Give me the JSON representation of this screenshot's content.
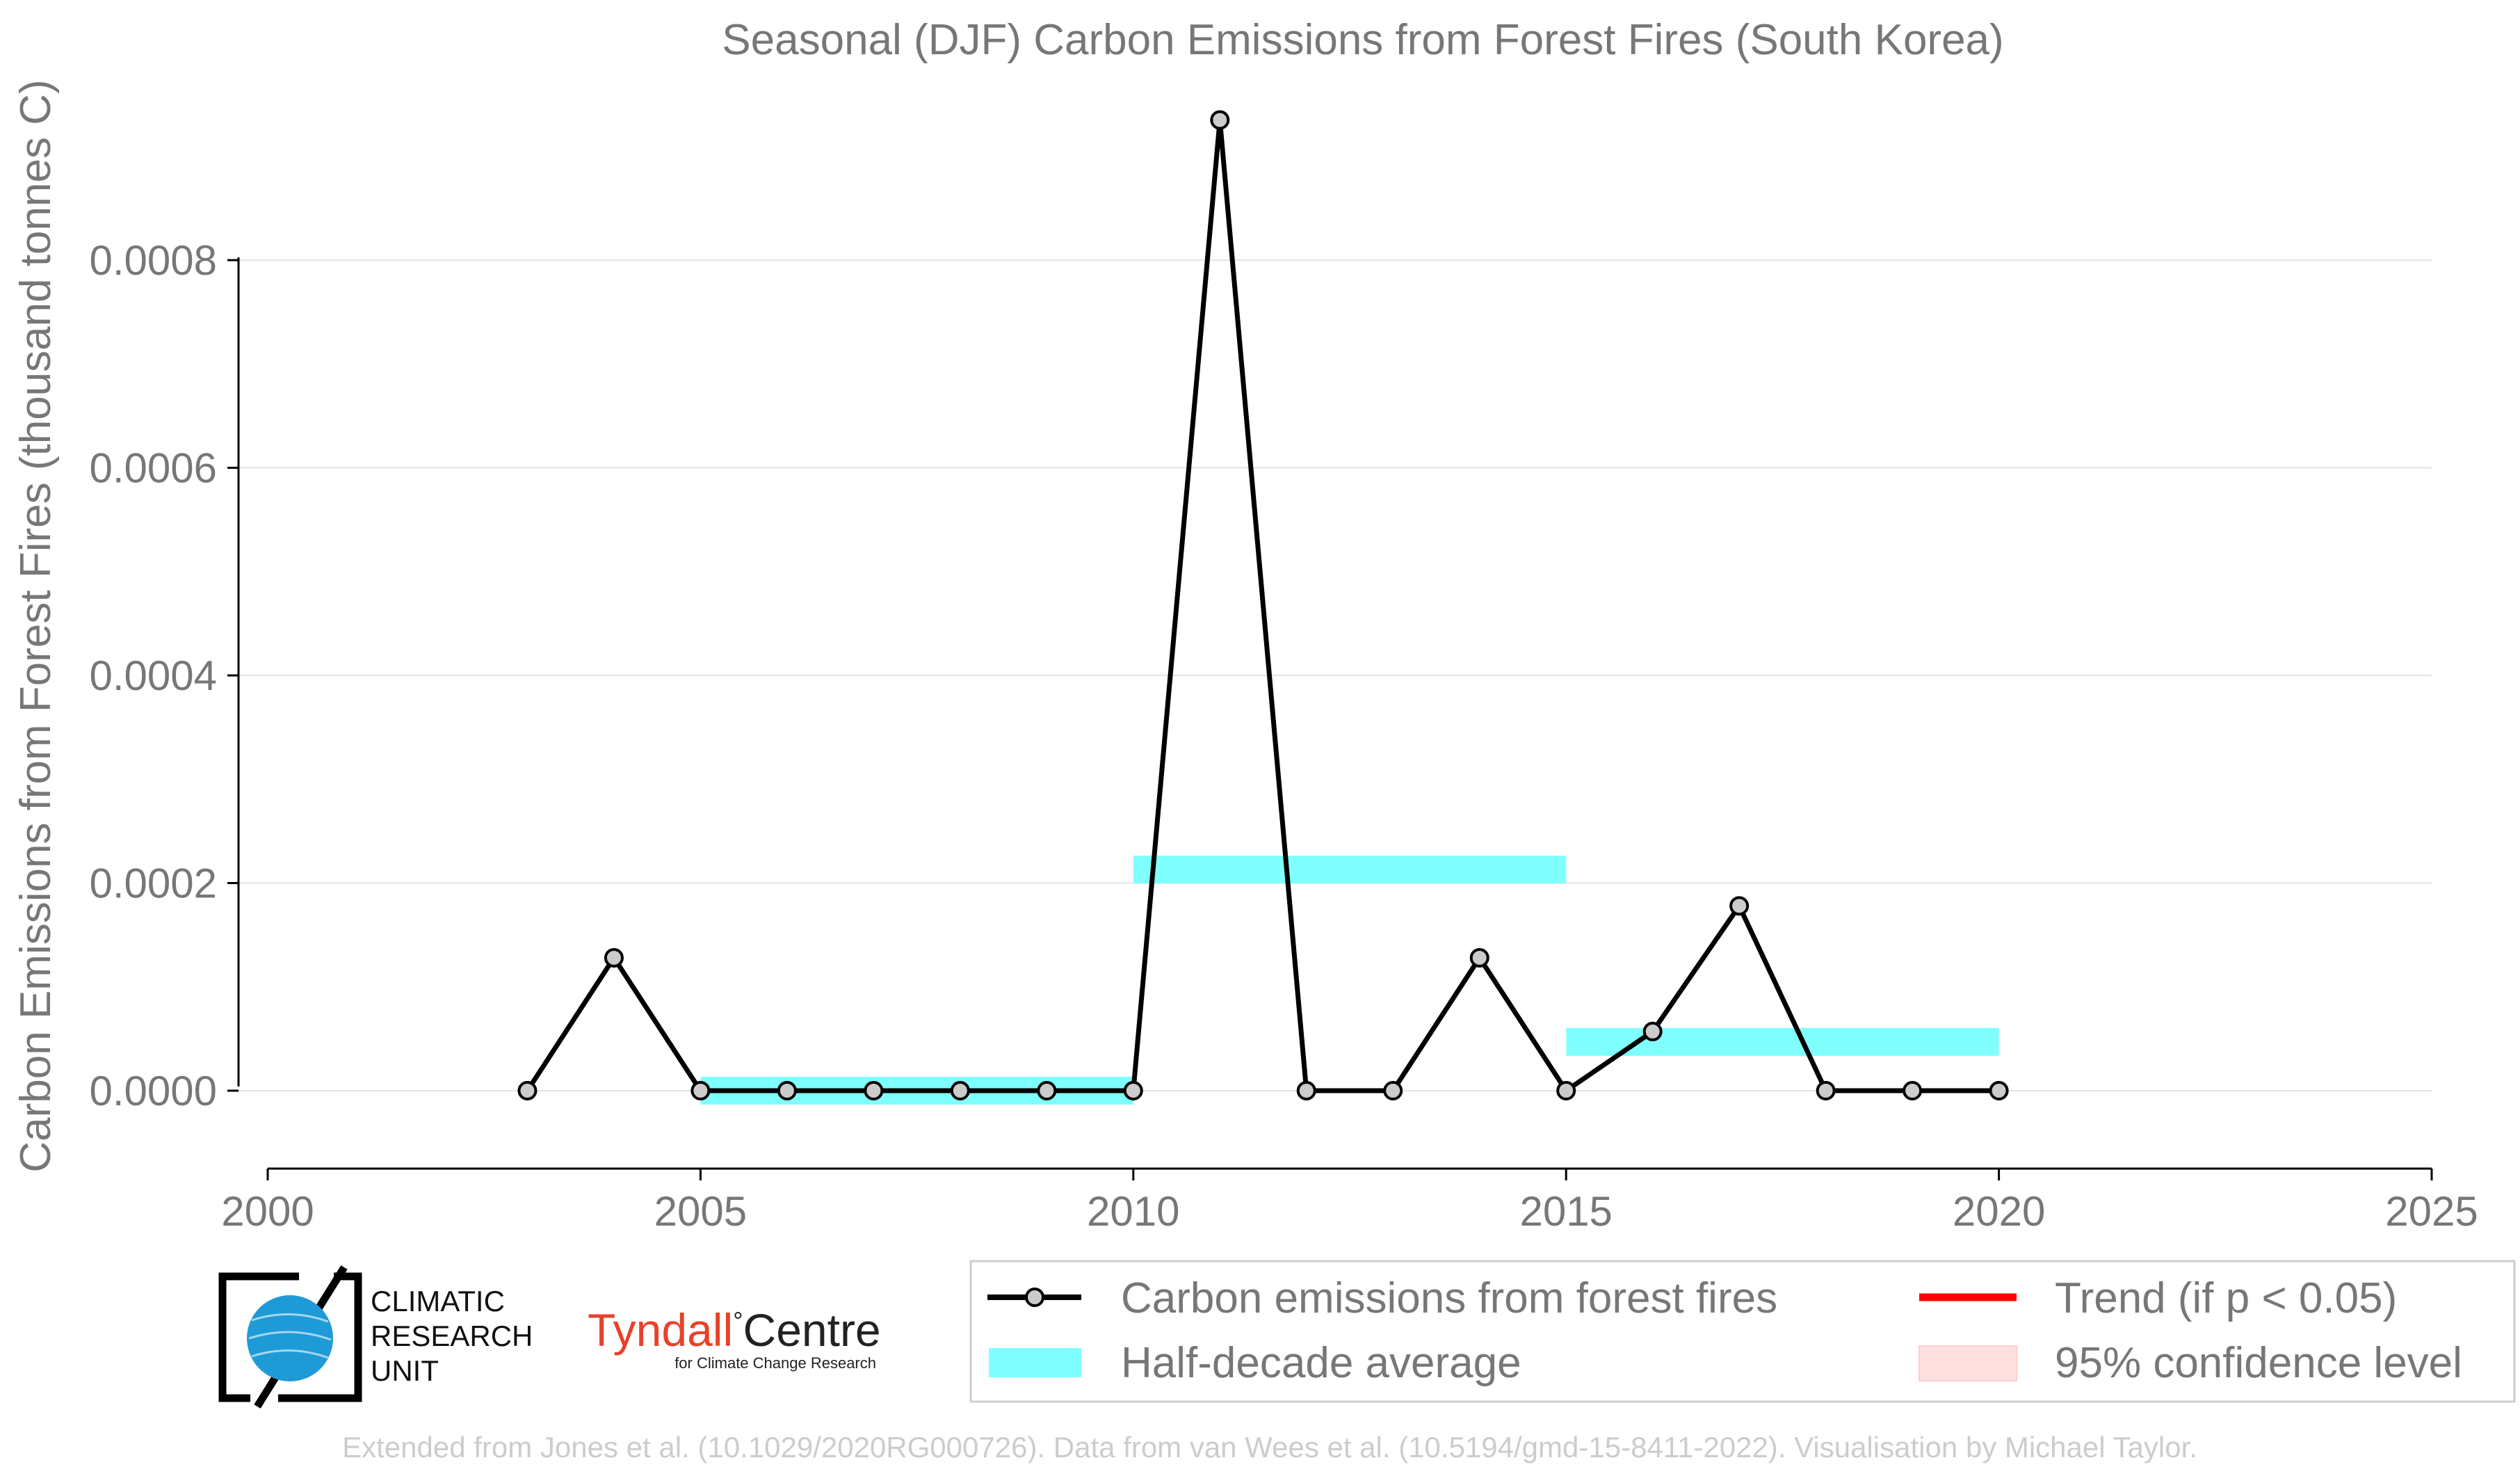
{
  "chart_data": {
    "type": "line",
    "title": "Seasonal (DJF) Carbon Emissions from Forest Fires (South Korea)",
    "xlabel": "",
    "ylabel": "Carbon Emissions from Forest Fires (thousand tonnes C)",
    "xlim": [
      2000,
      2025
    ],
    "ylim": [
      -7.5e-05,
      0.00095
    ],
    "x_ticks": [
      "2000",
      "2005",
      "2010",
      "2015",
      "2020",
      "2025"
    ],
    "y_ticks": [
      "0.0000",
      "0.0002",
      "0.0004",
      "0.0006",
      "0.0008"
    ],
    "grid": "horizontal",
    "legend_position": "bottom-right",
    "series": [
      {
        "name": "Carbon emissions from forest fires",
        "color": "#000000",
        "marker_color": "#cccccc",
        "x": [
          2003,
          2004,
          2005,
          2006,
          2007,
          2008,
          2009,
          2010,
          2011,
          2012,
          2013,
          2014,
          2015,
          2016,
          2017,
          2018,
          2019,
          2020
        ],
        "y": [
          0,
          0.000128,
          0,
          0,
          0,
          0,
          0,
          0,
          0.000935,
          0,
          0,
          0.000128,
          0,
          5.7e-05,
          0.000178,
          0,
          0,
          0
        ]
      }
    ],
    "half_decade_average": {
      "name": "Half-decade average",
      "color": "#80ffff",
      "segments": [
        {
          "x_start": 2005,
          "x_end": 2010,
          "y": 0
        },
        {
          "x_start": 2010,
          "x_end": 2015,
          "y": 0.000213
        },
        {
          "x_start": 2015,
          "x_end": 2020,
          "y": 4.7e-05
        }
      ]
    },
    "legend": [
      {
        "label": "Carbon emissions from forest fires",
        "kind": "line-marker",
        "color": "#000000"
      },
      {
        "label": "Trend (if p < 0.05)",
        "kind": "line",
        "color": "#ff0000"
      },
      {
        "label": "Half-decade average",
        "kind": "band",
        "color": "#80ffff"
      },
      {
        "label": "95% confidence level",
        "kind": "patch",
        "color": "#ffe0e0"
      }
    ]
  },
  "logos": {
    "cru_line1": "CLIMATIC",
    "cru_line2": "RESEARCH",
    "cru_line3": "UNIT",
    "tyndall_name": "Tyndall",
    "tyndall_degree": "°",
    "tyndall_centre": "Centre",
    "tyndall_tagline": "for Climate Change Research"
  },
  "credit": "Extended from Jones et al. (10.1029/2020RG000726). Data from van Wees et al. (10.5194/gmd-15-8411-2022). Visualisation by Michael Taylor."
}
